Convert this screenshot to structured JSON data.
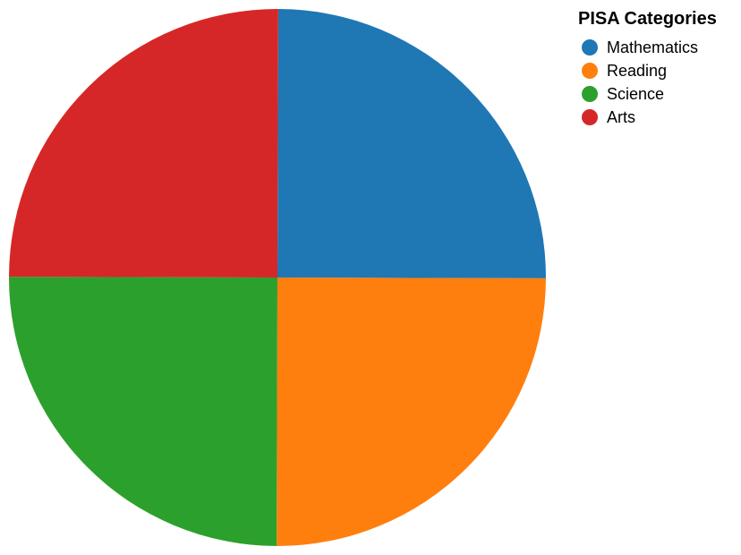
{
  "chart_data": {
    "type": "pie",
    "title": "",
    "categories": [
      "Mathematics",
      "Reading",
      "Science",
      "Arts"
    ],
    "values": [
      25,
      25,
      25,
      25
    ],
    "colors": [
      "#1f77b4",
      "#ff7f0e",
      "#2ca02c",
      "#d62728"
    ],
    "legend": {
      "title": "PISA Categories",
      "position": "top-right"
    }
  }
}
